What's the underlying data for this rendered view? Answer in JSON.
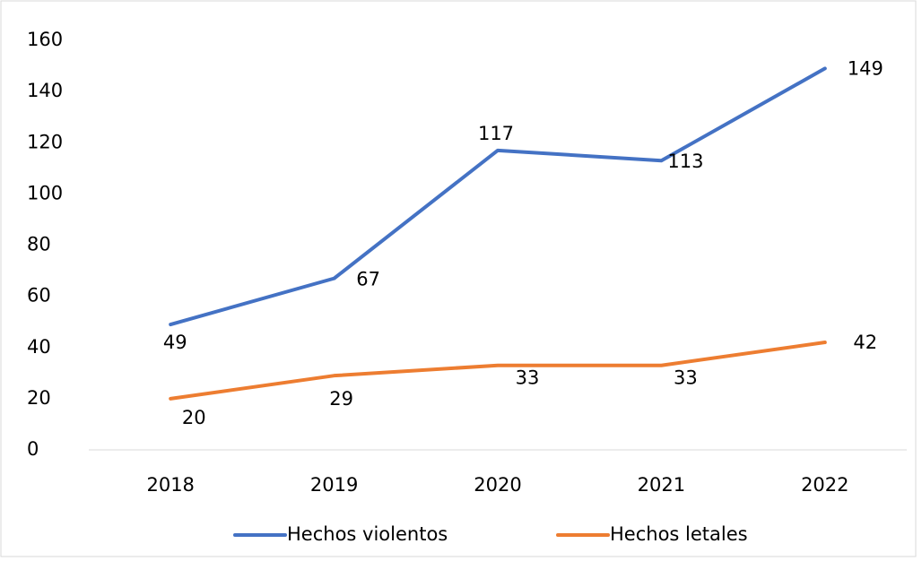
{
  "chart_data": {
    "type": "line",
    "categories": [
      "2018",
      "2019",
      "2020",
      "2021",
      "2022"
    ],
    "series": [
      {
        "name": "Hechos violentos",
        "color": "#4472c4",
        "values": [
          49,
          67,
          117,
          113,
          149
        ]
      },
      {
        "name": "Hechos letales",
        "color": "#ed7d31",
        "values": [
          20,
          29,
          33,
          33,
          42
        ]
      }
    ],
    "ylim": [
      0,
      160
    ],
    "yticks": [
      0,
      20,
      40,
      60,
      80,
      100,
      120,
      140,
      160
    ],
    "grid": false,
    "legend": "bottom"
  }
}
